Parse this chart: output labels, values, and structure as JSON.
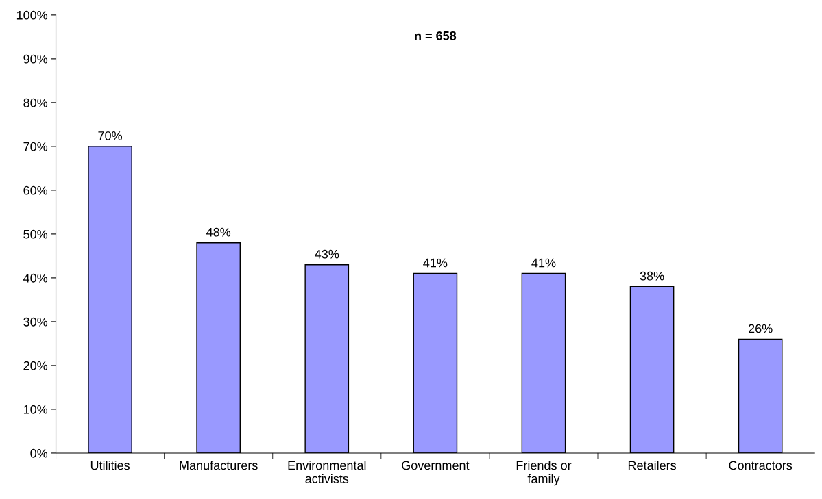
{
  "chart_data": {
    "type": "bar",
    "annotations": [
      "n = 658"
    ],
    "categories": [
      "Utilities",
      "Manufacturers",
      "Environmental\nactivists",
      "Government",
      "Friends or\nfamily",
      "Retailers",
      "Contractors"
    ],
    "values": [
      70,
      48,
      43,
      41,
      41,
      38,
      26
    ],
    "value_labels": [
      "70%",
      "48%",
      "43%",
      "41%",
      "41%",
      "38%",
      "26%"
    ],
    "color": "#9999ff",
    "ylim": [
      0,
      100
    ],
    "yticks": [
      {
        "value": 0,
        "label": "0%"
      },
      {
        "value": 10,
        "label": "10%"
      },
      {
        "value": 20,
        "label": "20%"
      },
      {
        "value": 30,
        "label": "30%"
      },
      {
        "value": 40,
        "label": "40%"
      },
      {
        "value": 50,
        "label": "50%"
      },
      {
        "value": 60,
        "label": "60%"
      },
      {
        "value": 70,
        "label": "70%"
      },
      {
        "value": 80,
        "label": "80%"
      },
      {
        "value": 90,
        "label": "90%"
      },
      {
        "value": 100,
        "label": "100%"
      }
    ],
    "grid": false,
    "legend": false
  }
}
